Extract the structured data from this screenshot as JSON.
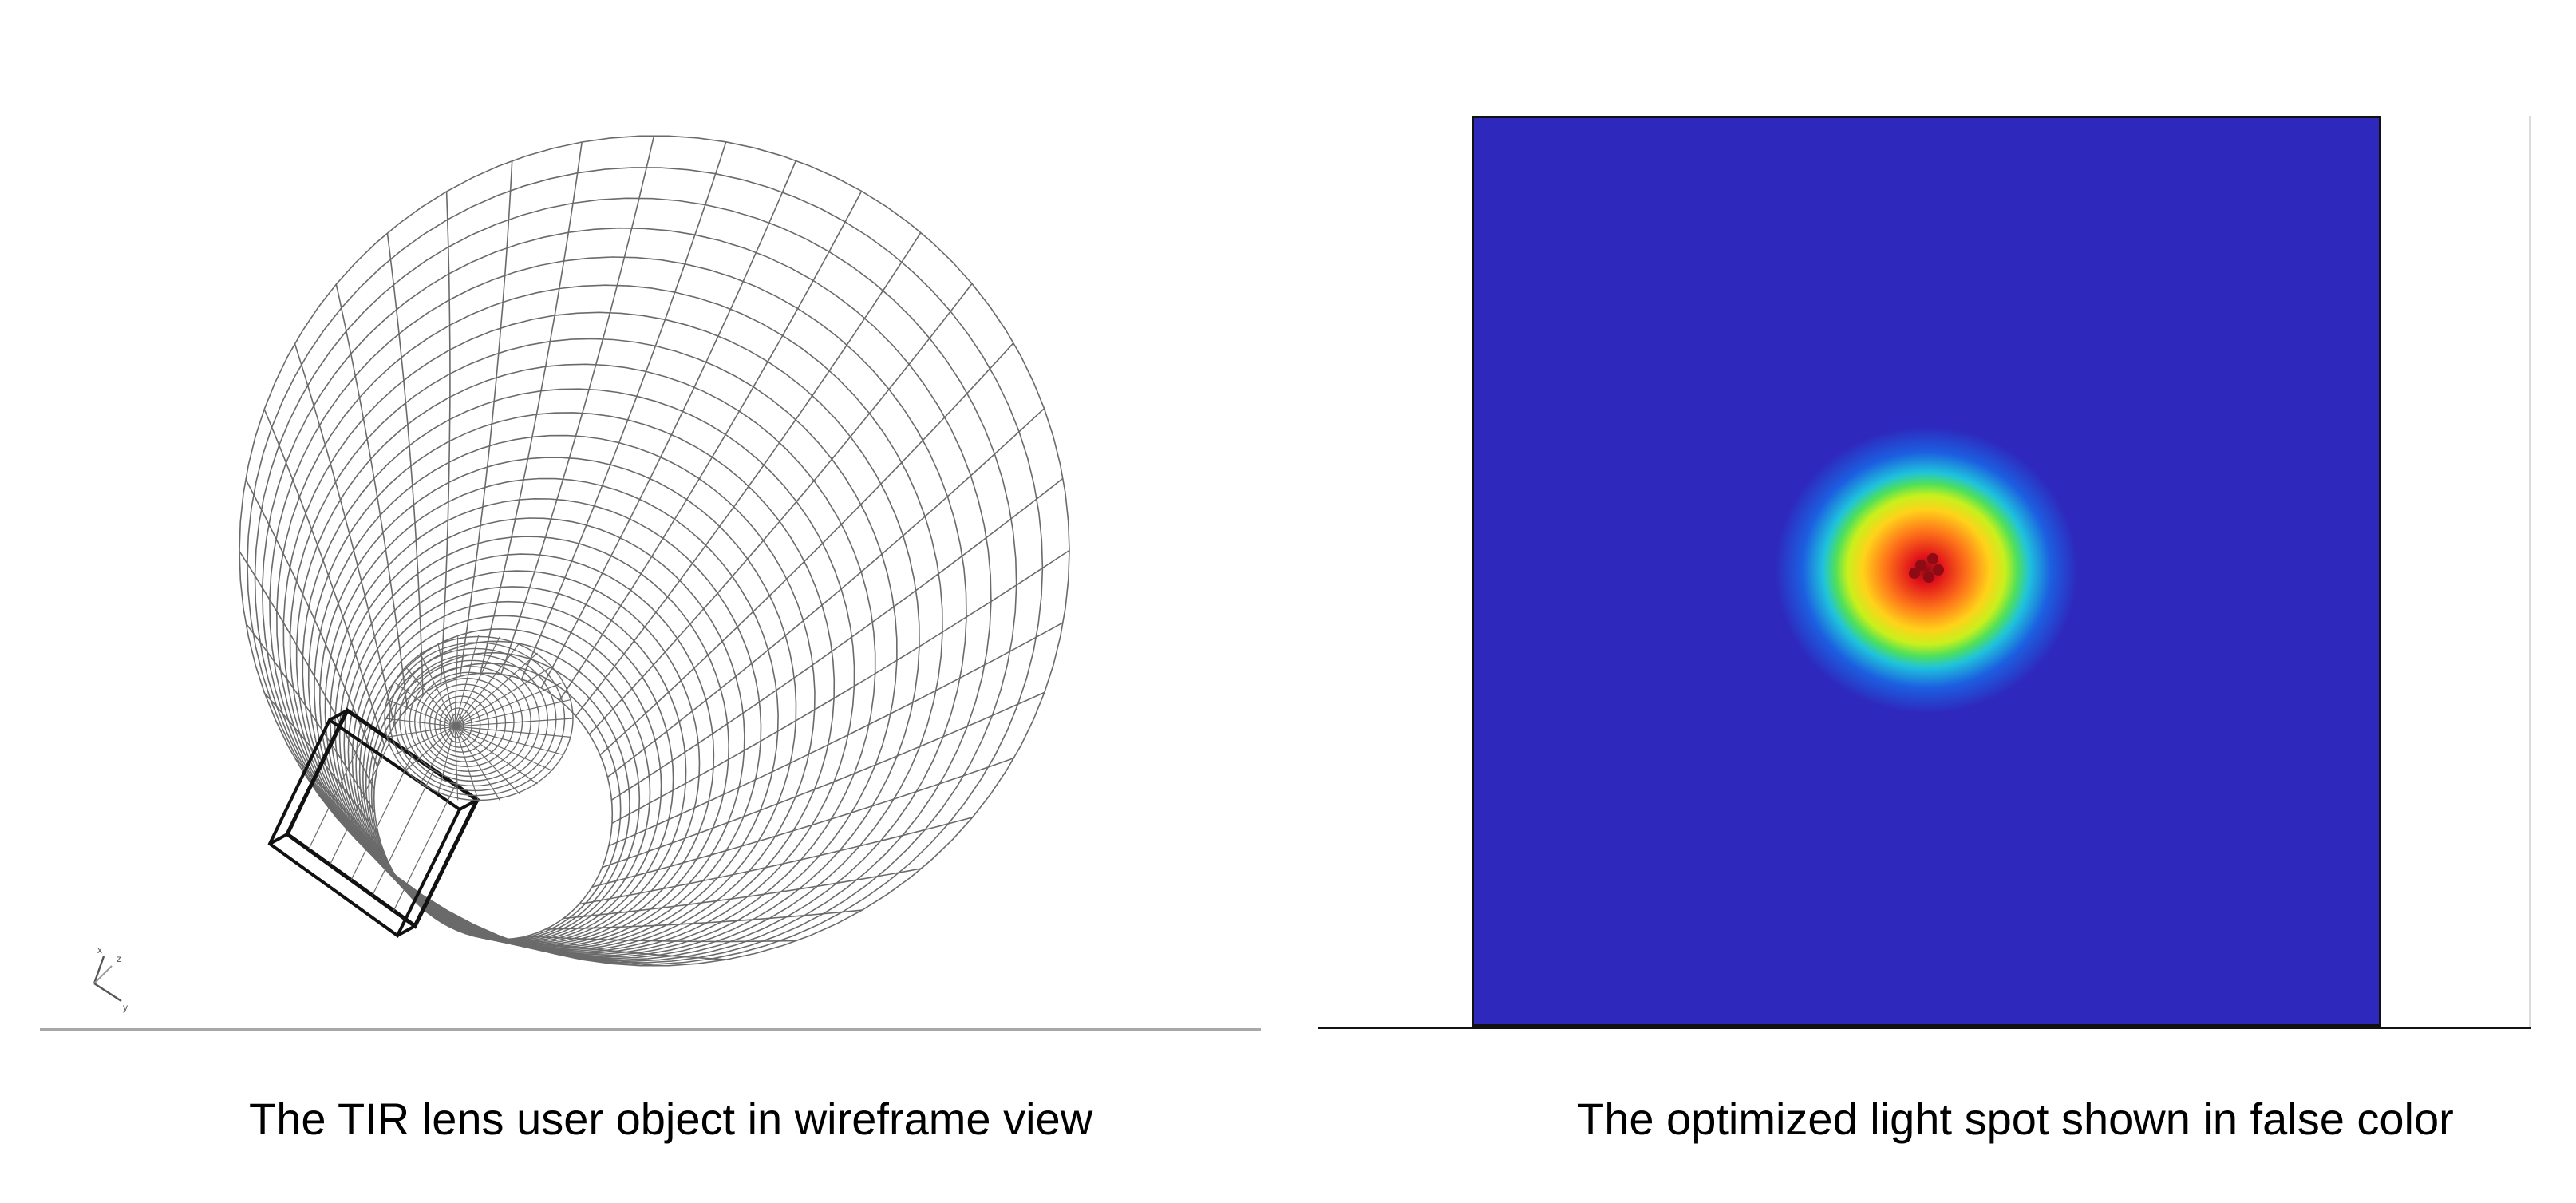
{
  "captions": {
    "left": "The TIR lens user object in wireframe view",
    "right": "The optimized light spot shown in false color"
  },
  "wireframe": {
    "axis_labels": [
      "x",
      "z",
      "y"
    ],
    "line_color": "#6a6a6a",
    "bold_line_color": "#111111"
  },
  "falsecolor": {
    "background_color": "#2e28bd",
    "colormap": [
      "#2e28bd",
      "#1c5fe0",
      "#1fc3dc",
      "#4fe05a",
      "#c8f01c",
      "#ffd21a",
      "#ff7a1a",
      "#e2141a",
      "#8e0a14"
    ]
  },
  "icons": {
    "axis_triad": "axis-triad-icon"
  }
}
